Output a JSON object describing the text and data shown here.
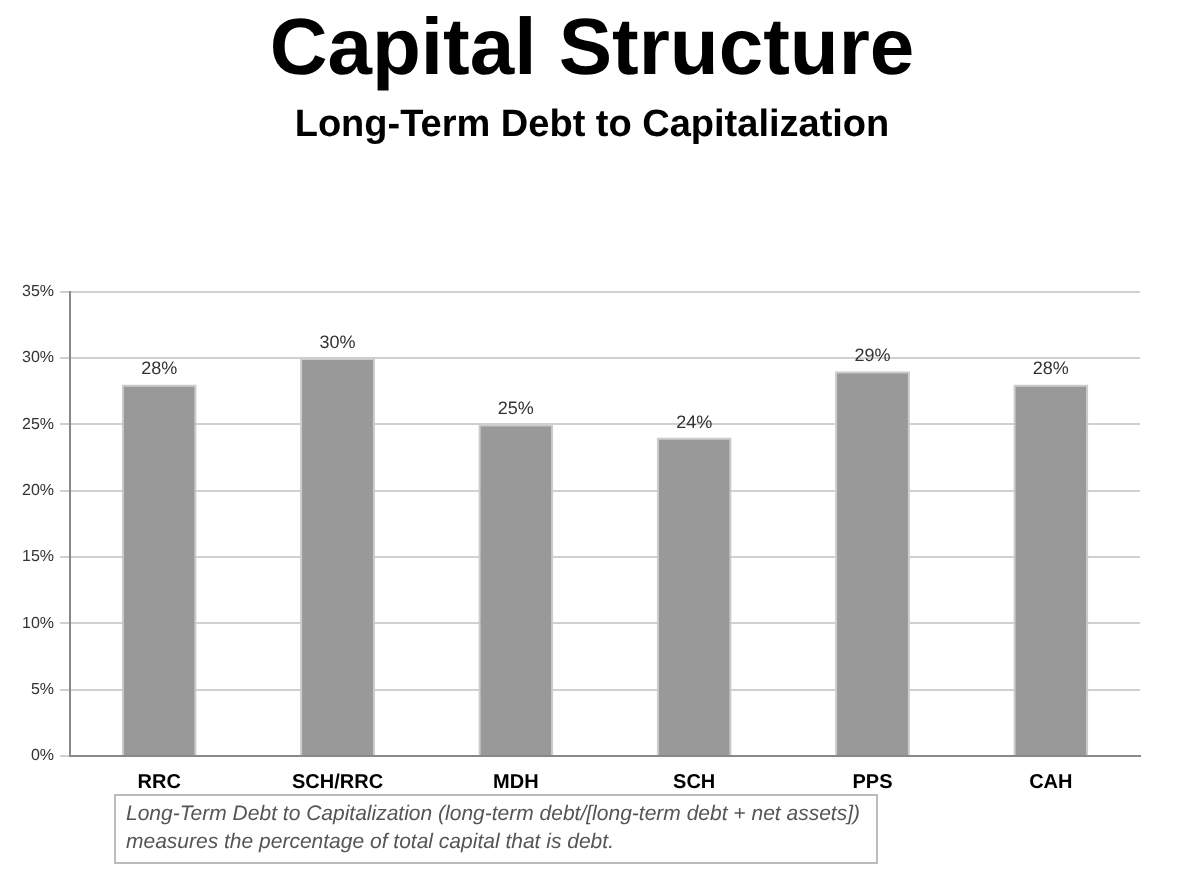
{
  "chart_data": {
    "type": "bar",
    "title": "Capital Structure",
    "subtitle": "Long-Term Debt to Capitalization",
    "categories": [
      "RRC",
      "SCH/RRC",
      "MDH",
      "SCH",
      "PPS",
      "CAH"
    ],
    "values": [
      28,
      30,
      25,
      24,
      29,
      28
    ],
    "color": "#999999",
    "ylim": [
      0,
      35
    ],
    "yticks": [
      {
        "value": 0,
        "label": "0%"
      },
      {
        "value": 5,
        "label": "5%"
      },
      {
        "value": 10,
        "label": "10%"
      },
      {
        "value": 15,
        "label": "15%"
      },
      {
        "value": 20,
        "label": "20%"
      },
      {
        "value": 25,
        "label": "25%"
      },
      {
        "value": 30,
        "label": "30%"
      },
      {
        "value": 35,
        "label": "35%"
      }
    ],
    "value_labels": [
      "28%",
      "30%",
      "25%",
      "24%",
      "29%",
      "28%"
    ],
    "grid": "y",
    "legend": false,
    "annotations": [
      "Long-Term Debt to Capitalization (long-term debt/[long-term debt + net assets]) measures the percentage of total capital that is debt."
    ]
  }
}
